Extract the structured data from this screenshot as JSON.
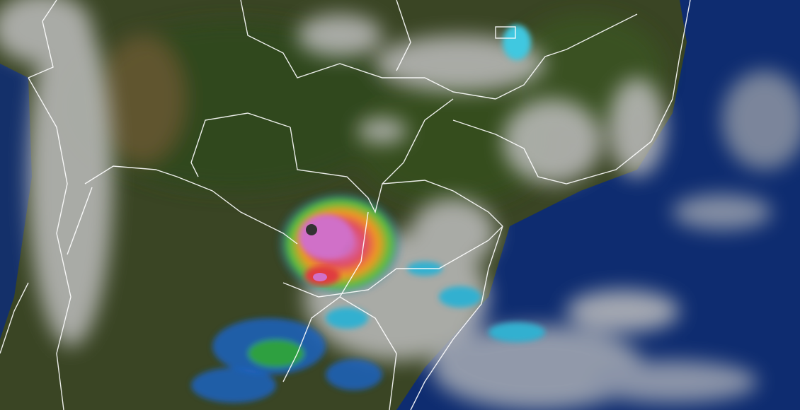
{
  "map": {
    "kind": "satellite-weather-image",
    "colors": {
      "land": "#3b4a22",
      "ocean": "#0c2a6e",
      "cloud": "#c9c9c9",
      "storm_core": "#d070c8",
      "storm_red": "#e0302a",
      "storm_orange": "#f0a020",
      "storm_green": "#40c040",
      "rain_cyan": "#40c8e0",
      "border": "#ffffff"
    }
  }
}
